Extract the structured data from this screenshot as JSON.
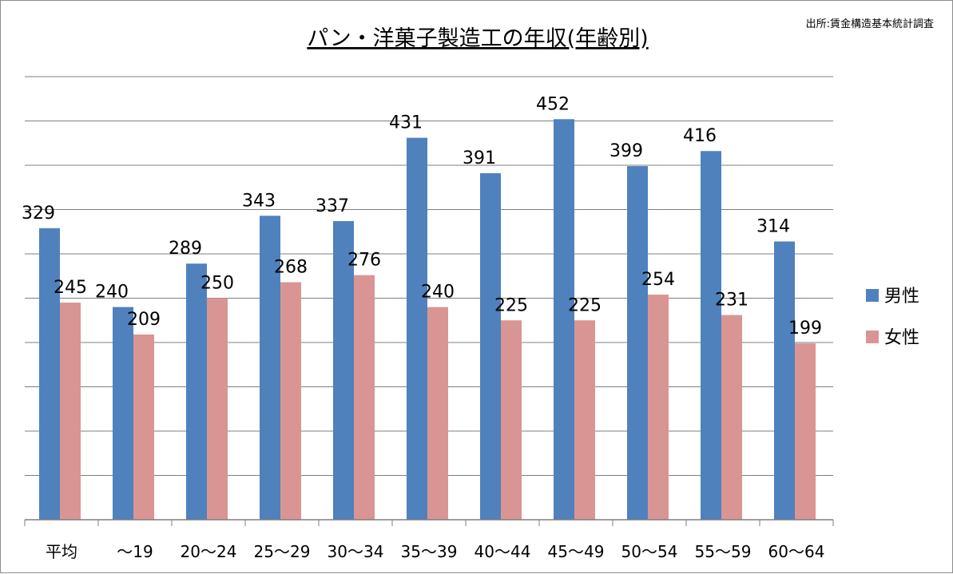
{
  "chart_data": {
    "type": "bar",
    "title": "パン・洋菓子製造工の年収(年齢別)",
    "source": "出所:賃金構造基本統計調査",
    "categories": [
      "平均",
      "〜19",
      "20〜24",
      "25〜29",
      "30〜34",
      "35〜39",
      "40〜44",
      "45〜49",
      "50〜54",
      "55〜59",
      "60〜64"
    ],
    "series": [
      {
        "name": "男性",
        "color": "#4f81bd",
        "values": [
          329,
          240,
          289,
          343,
          337,
          431,
          391,
          452,
          399,
          416,
          314
        ]
      },
      {
        "name": "女性",
        "color": "#d99594",
        "values": [
          245,
          209,
          250,
          268,
          276,
          240,
          225,
          225,
          254,
          231,
          199
        ]
      }
    ],
    "ylim": [
      0,
      500
    ],
    "grid": true,
    "y_tick_labels_shown": false,
    "legend_position": "right",
    "colors": {
      "grid": "#7f7f7f",
      "axis": "#7f7f7f"
    }
  }
}
